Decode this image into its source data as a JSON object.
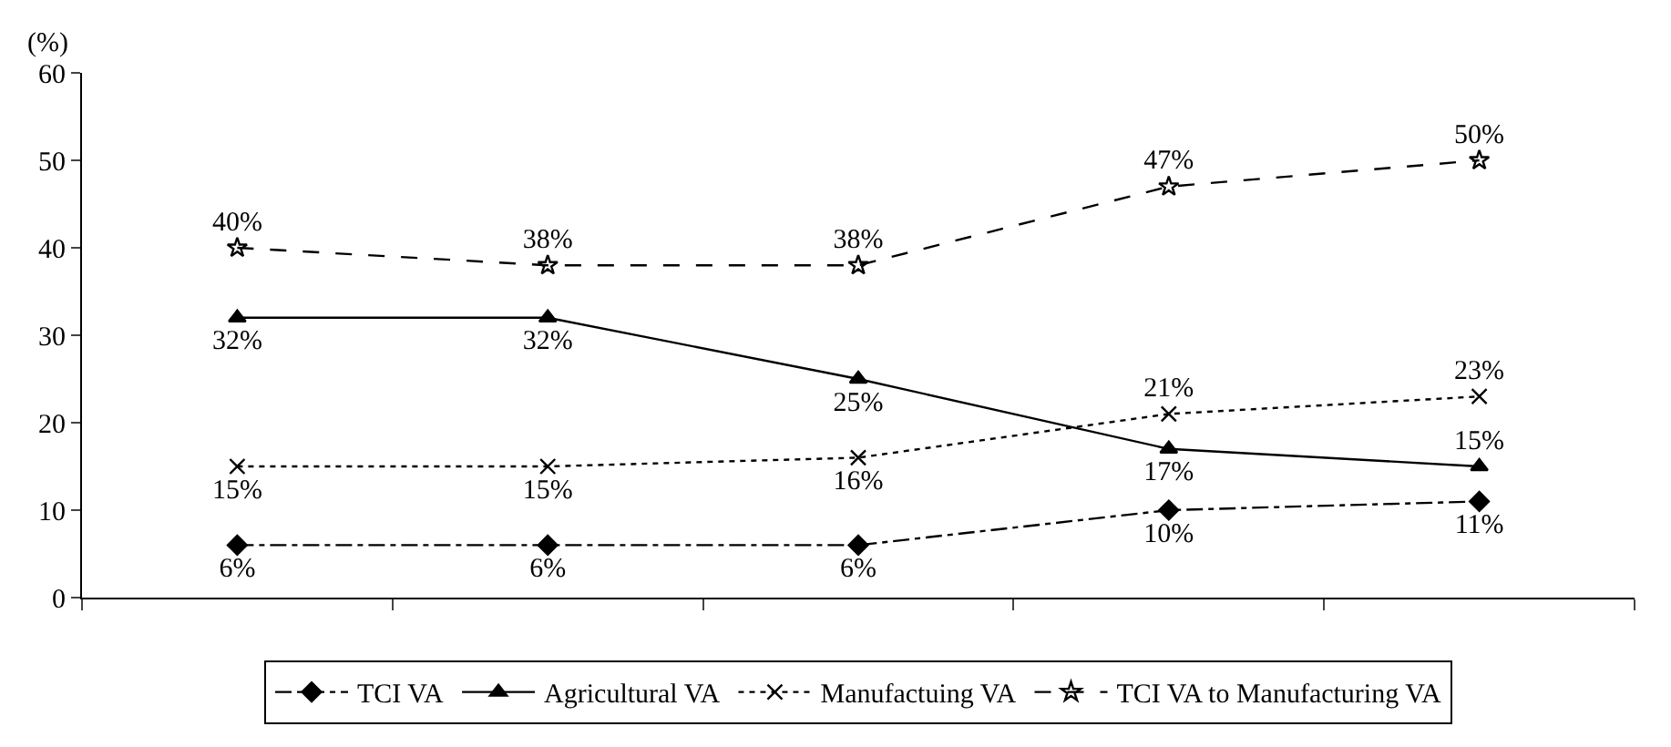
{
  "chart_data": {
    "type": "line",
    "ylabel": "(%)",
    "categories": [
      null,
      null,
      null,
      null,
      null
    ],
    "series": [
      {
        "name": "TCI VA",
        "color": "#000000",
        "marker": "diamond",
        "line_style": "dashdot",
        "values": [
          6,
          6,
          6,
          10,
          11
        ],
        "value_labels": [
          "6%",
          "6%",
          "6%",
          "10%",
          "11%"
        ]
      },
      {
        "name": "Agricultural VA",
        "color": "#000000",
        "marker": "triangle",
        "line_style": "solid",
        "values": [
          32,
          32,
          25,
          17,
          15
        ],
        "value_labels": [
          "32%",
          "32%",
          "25%",
          "17%",
          "15%"
        ]
      },
      {
        "name": "Manufactuing VA",
        "color": "#000000",
        "marker": "cross",
        "line_style": "dotted",
        "values": [
          15,
          15,
          16,
          21,
          23
        ],
        "value_labels": [
          "15%",
          "15%",
          "16%",
          "21%",
          "23%"
        ]
      },
      {
        "name": "TCI VA to Manufacturing VA",
        "color": "#000000",
        "marker": "star",
        "line_style": "dashed",
        "values": [
          40,
          38,
          38,
          47,
          50
        ],
        "value_labels": [
          "40%",
          "38%",
          "38%",
          "47%",
          "50%"
        ]
      }
    ],
    "ylim": [
      0,
      60
    ],
    "yticks": [
      0,
      10,
      20,
      30,
      40,
      50,
      60
    ],
    "grid": false,
    "legend": "bottom",
    "tick_labels": "y"
  }
}
